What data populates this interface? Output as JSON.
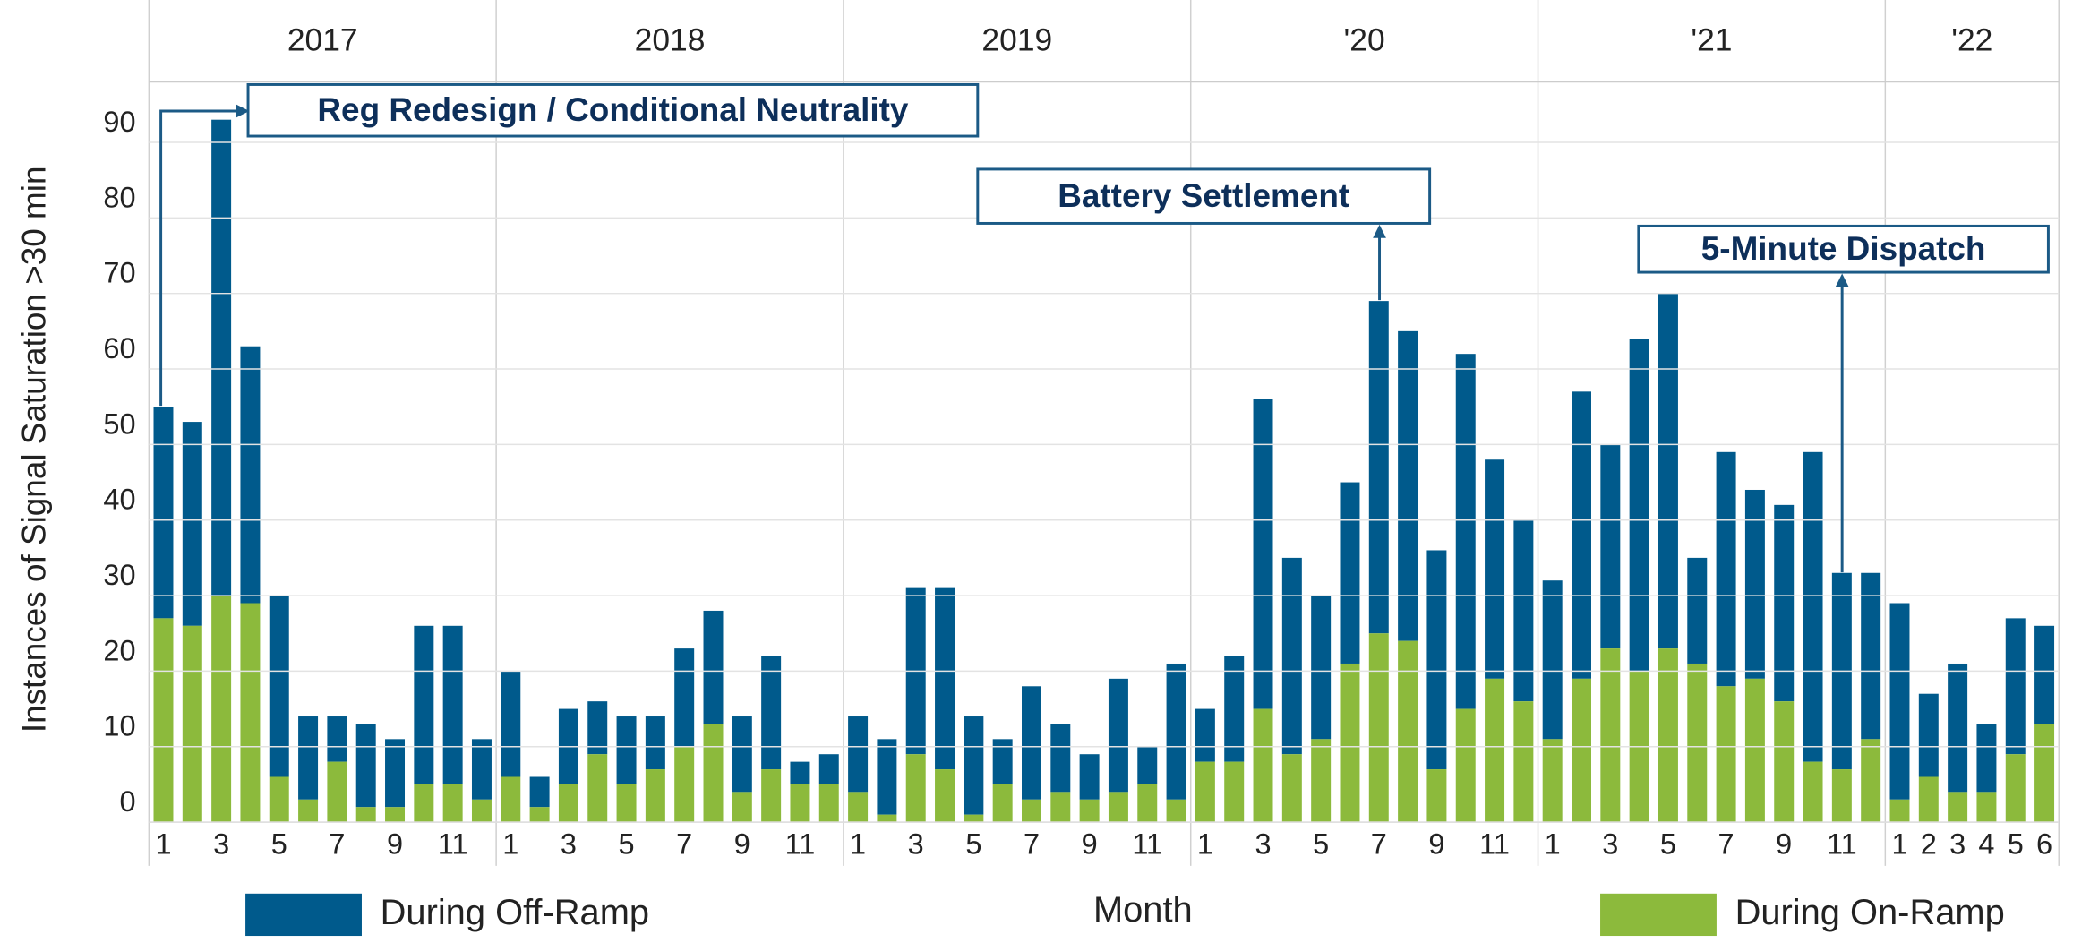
{
  "chart_data": {
    "type": "stacked_bar",
    "y_label": "Instances of Signal Saturation >30 min",
    "x_label": "Month",
    "years": [
      "2017",
      "2018",
      "2019",
      "'20",
      "'21",
      "'22"
    ],
    "categories": [
      "1",
      null,
      "3",
      null,
      "5",
      null,
      "7",
      null,
      "9",
      null,
      "11",
      null,
      "1",
      null,
      "3",
      null,
      "5",
      null,
      "7",
      null,
      "9",
      null,
      "11",
      null,
      "1",
      null,
      "3",
      null,
      "5",
      null,
      "7",
      null,
      "9",
      null,
      "11",
      null,
      "1",
      null,
      "3",
      null,
      "5",
      null,
      "7",
      null,
      "9",
      null,
      "11",
      null,
      "1",
      null,
      "3",
      null,
      "5",
      null,
      "7",
      null,
      "9",
      null,
      "11",
      null,
      "1",
      "2",
      "3",
      "4",
      "5",
      "6"
    ],
    "series": [
      {
        "name": "During Off-Ramp",
        "color": "#005a8c",
        "values": [
          28,
          27,
          63,
          34,
          24,
          11,
          6,
          11,
          9,
          21,
          21,
          8,
          14,
          4,
          10,
          7,
          9,
          7,
          13,
          15,
          10,
          15,
          3,
          4,
          10,
          10,
          22,
          24,
          13,
          6,
          15,
          9,
          6,
          15,
          5,
          18,
          7,
          14,
          41,
          26,
          19,
          24,
          44,
          41,
          29,
          47,
          29,
          24,
          21,
          38,
          27,
          44,
          47,
          14,
          31,
          25,
          26,
          41,
          26,
          22,
          26,
          11,
          17,
          9,
          18,
          13
        ]
      },
      {
        "name": "During On-Ramp",
        "color": "#8cba3c",
        "values": [
          27,
          26,
          30,
          29,
          6,
          3,
          8,
          2,
          2,
          5,
          5,
          3,
          6,
          2,
          5,
          9,
          5,
          7,
          10,
          13,
          4,
          7,
          5,
          5,
          4,
          1,
          9,
          7,
          1,
          5,
          3,
          4,
          3,
          4,
          5,
          3,
          8,
          8,
          15,
          9,
          11,
          21,
          25,
          24,
          7,
          15,
          19,
          16,
          11,
          19,
          23,
          20,
          23,
          21,
          18,
          19,
          16,
          8,
          7,
          11,
          3,
          6,
          4,
          4,
          9,
          13
        ]
      }
    ],
    "ylim": [
      0,
      98
    ],
    "yticks": [
      0,
      10,
      20,
      30,
      40,
      50,
      60,
      70,
      80,
      90
    ],
    "grid": true,
    "annotations": [
      "Reg Redesign / Conditional Neutrality",
      "Battery Settlement",
      "5-Minute Dispatch"
    ]
  }
}
